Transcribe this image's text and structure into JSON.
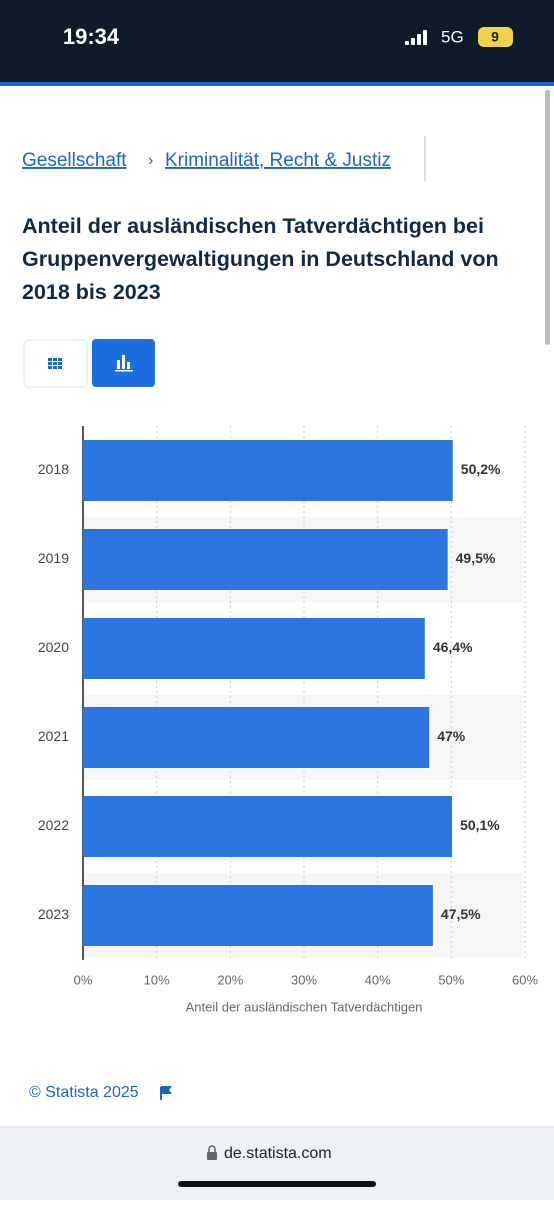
{
  "status_bar": {
    "time": "19:34",
    "network": "5G",
    "battery": "9"
  },
  "breadcrumb": [
    "Gesellschaft",
    "Kriminalität, Recht & Justiz"
  ],
  "chart_data": {
    "type": "bar",
    "orientation": "horizontal",
    "title": "Anteil der ausländischen Tatverdächtigen bei Gruppenvergewaltigungen in Deutschland von 2018 bis 2023",
    "categories": [
      "2018",
      "2019",
      "2020",
      "2021",
      "2022",
      "2023"
    ],
    "values": [
      50.2,
      49.5,
      46.4,
      47,
      50.1,
      47.5
    ],
    "value_labels": [
      "50,2%",
      "49,5%",
      "46,4%",
      "47%",
      "50,1%",
      "47,5%"
    ],
    "color": "#2a75de",
    "xlim": [
      0,
      60
    ],
    "xticks": [
      {
        "value": 0,
        "label": "0%"
      },
      {
        "value": 10,
        "label": "10%"
      },
      {
        "value": 20,
        "label": "20%"
      },
      {
        "value": 30,
        "label": "30%"
      },
      {
        "value": 40,
        "label": "40%"
      },
      {
        "value": 50,
        "label": "50%"
      },
      {
        "value": 60,
        "label": "60%"
      }
    ],
    "x_label": "Anteil der ausländischen Tatverdächtigen",
    "grid": true
  },
  "footer": {
    "copyright": "© Statista 2025"
  },
  "browser": {
    "url": "de.statista.com"
  }
}
